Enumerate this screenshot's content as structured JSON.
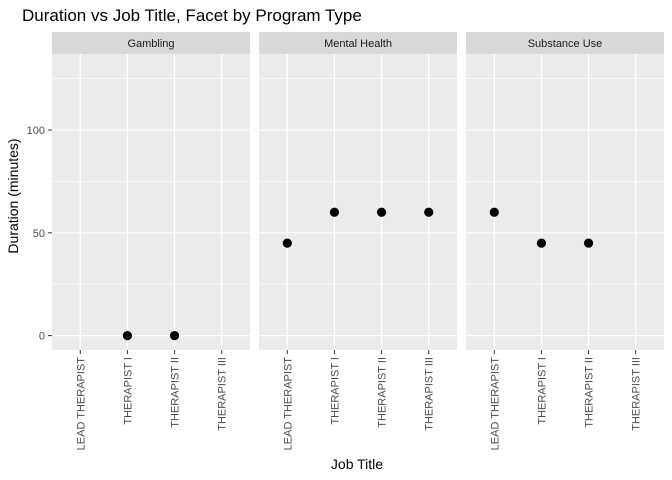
{
  "chart_data": {
    "type": "scatter",
    "title": "Duration vs Job Title, Facet by Program Type",
    "xlabel": "Job Title",
    "ylabel": "Duration (minutes)",
    "categories": [
      "LEAD THERAPIST",
      "THERAPIST I",
      "THERAPIST II",
      "THERAPIST III"
    ],
    "ylim": [
      -7,
      137
    ],
    "yticks": [
      0,
      50,
      100
    ],
    "grid": true,
    "facets": [
      {
        "name": "Gambling",
        "points": [
          {
            "x": "THERAPIST I",
            "y": 0
          },
          {
            "x": "THERAPIST II",
            "y": 0
          }
        ]
      },
      {
        "name": "Mental Health",
        "points": [
          {
            "x": "LEAD THERAPIST",
            "y": 45
          },
          {
            "x": "THERAPIST I",
            "y": 60
          },
          {
            "x": "THERAPIST II",
            "y": 60
          },
          {
            "x": "THERAPIST III",
            "y": 60
          }
        ]
      },
      {
        "name": "Substance Use",
        "points": [
          {
            "x": "LEAD THERAPIST",
            "y": 60
          },
          {
            "x": "THERAPIST I",
            "y": 45
          },
          {
            "x": "THERAPIST II",
            "y": 45
          }
        ]
      }
    ]
  },
  "colors": {
    "panel_bg": "#ebebeb",
    "strip_bg": "#d9d9d9",
    "grid": "#ffffff",
    "point": "#000000",
    "tick": "#333333"
  }
}
